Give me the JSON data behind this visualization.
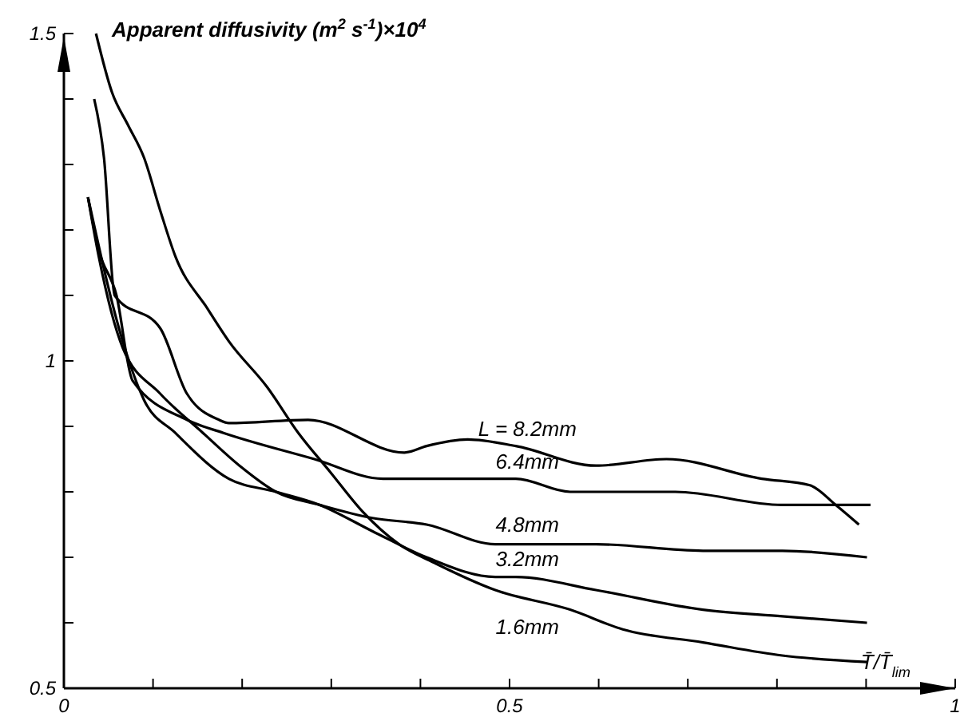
{
  "chart_data": {
    "type": "line",
    "ylabel": "Apparent diffusivity (m$^{2}$ s$^{-1}$)×10$^{4}$",
    "xlabel": "T̄/T̄$_{lim}$",
    "xlim": [
      0,
      1
    ],
    "ylim": [
      0.5,
      1.5
    ],
    "xticks": [
      0,
      {
        "value": 0.1,
        "label": null
      },
      {
        "value": 0.2,
        "label": null
      },
      {
        "value": 0.3,
        "label": null
      },
      {
        "value": 0.4,
        "label": null
      },
      0.5,
      {
        "value": 0.6,
        "label": null
      },
      {
        "value": 0.7,
        "label": null
      },
      {
        "value": 0.8,
        "label": null
      },
      {
        "value": 0.9,
        "label": null
      },
      1
    ],
    "yticks": [
      0.5,
      {
        "value": 0.6,
        "label": null
      },
      {
        "value": 0.7,
        "label": null
      },
      {
        "value": 0.8,
        "label": null
      },
      {
        "value": 0.9,
        "label": null
      },
      1,
      {
        "value": 1.1,
        "label": null
      },
      {
        "value": 1.2,
        "label": null
      },
      {
        "value": 1.3,
        "label": null
      },
      {
        "value": 1.4,
        "label": null
      },
      1.5
    ],
    "grid": false,
    "marker": "none",
    "line_style": "solid",
    "series": [
      {
        "name": "L = 8.2mm",
        "color": "#000000",
        "x": [
          0.034,
          0.045,
          0.057,
          0.108,
          0.138,
          0.174,
          0.185,
          0.274,
          0.382,
          0.407,
          0.453,
          0.507,
          0.597,
          0.676,
          0.783,
          0.837,
          0.866,
          0.892
        ],
        "values": [
          1.4,
          1.31,
          1.1,
          1.05,
          0.95,
          0.91,
          0.905,
          0.91,
          0.86,
          0.87,
          0.88,
          0.87,
          0.84,
          0.85,
          0.82,
          0.81,
          0.78,
          0.75
        ]
      },
      {
        "name": "6.4mm",
        "color": "#000000",
        "x": [
          0.027,
          0.039,
          0.059,
          0.077,
          0.138,
          0.179,
          0.281,
          0.358,
          0.407,
          0.484,
          0.507,
          0.568,
          0.686,
          0.806,
          0.905
        ],
        "values": [
          1.25,
          1.17,
          1.1,
          0.97,
          0.91,
          0.89,
          0.85,
          0.82,
          0.82,
          0.82,
          0.82,
          0.8,
          0.8,
          0.78,
          0.78
        ]
      },
      {
        "name": "4.8mm",
        "color": "#000000",
        "x": [
          0.027,
          0.039,
          0.066,
          0.108,
          0.156,
          0.197,
          0.238,
          0.287,
          0.346,
          0.407,
          0.484,
          0.507,
          0.597,
          0.717,
          0.806,
          0.901
        ],
        "values": [
          1.25,
          1.16,
          1.02,
          0.95,
          0.89,
          0.84,
          0.8,
          0.78,
          0.76,
          0.75,
          0.72,
          0.72,
          0.72,
          0.71,
          0.71,
          0.7
        ]
      },
      {
        "name": "3.2mm",
        "color": "#000000",
        "x": [
          0.027,
          0.066,
          0.09,
          0.125,
          0.185,
          0.238,
          0.287,
          0.346,
          0.407,
          0.484,
          0.507,
          0.597,
          0.717,
          0.806,
          0.901
        ],
        "values": [
          1.25,
          1.03,
          0.94,
          0.89,
          0.82,
          0.8,
          0.78,
          0.74,
          0.7,
          0.67,
          0.67,
          0.65,
          0.62,
          0.61,
          0.6
        ]
      },
      {
        "name": "1.6mm",
        "color": "#000000",
        "x": [
          0.036,
          0.054,
          0.072,
          0.09,
          0.108,
          0.125,
          0.161,
          0.185,
          0.228,
          0.263,
          0.299,
          0.335,
          0.376,
          0.418,
          0.484,
          0.568,
          0.627,
          0.717,
          0.806,
          0.901
        ],
        "values": [
          1.5,
          1.41,
          1.36,
          1.31,
          1.23,
          1.16,
          1.08,
          1.03,
          0.96,
          0.89,
          0.83,
          0.77,
          0.72,
          0.69,
          0.65,
          0.62,
          0.59,
          0.57,
          0.55,
          0.54
        ]
      }
    ]
  }
}
